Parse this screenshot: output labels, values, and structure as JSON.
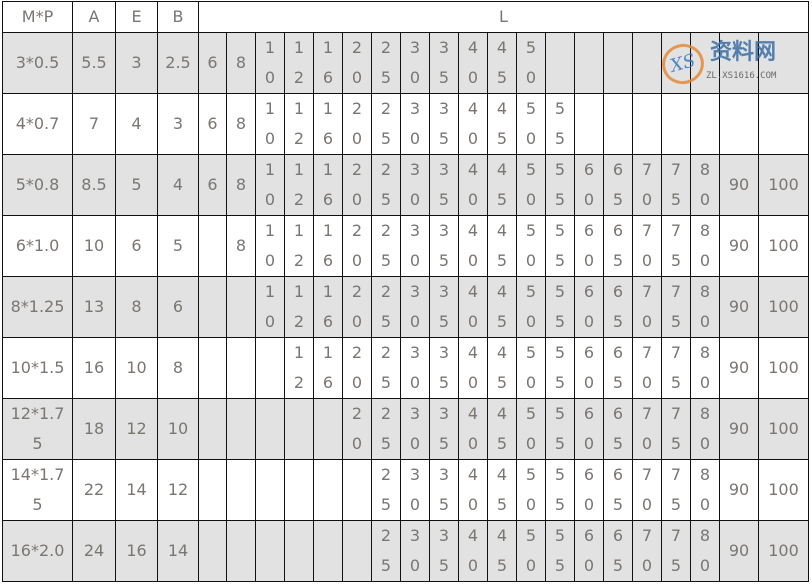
{
  "header": {
    "mp": "M*P",
    "a": "A",
    "e": "E",
    "b": "B",
    "l": "L"
  },
  "rows": [
    {
      "mp": "3*0.5",
      "a": "5.5",
      "e": "3",
      "b": "2.5",
      "gray": true,
      "l": [
        "6",
        "8",
        "10",
        "12",
        "16",
        "20",
        "25",
        "30",
        "35",
        "40",
        "45",
        "50",
        "",
        "",
        "",
        "",
        "",
        "",
        "",
        ""
      ]
    },
    {
      "mp": "4*0.7",
      "a": "7",
      "e": "4",
      "b": "3",
      "gray": false,
      "l": [
        "6",
        "8",
        "10",
        "12",
        "16",
        "20",
        "25",
        "30",
        "35",
        "40",
        "45",
        "50",
        "55",
        "",
        "",
        "",
        "",
        "",
        "",
        ""
      ]
    },
    {
      "mp": "5*0.8",
      "a": "8.5",
      "e": "5",
      "b": "4",
      "gray": true,
      "l": [
        "6",
        "8",
        "10",
        "12",
        "16",
        "20",
        "25",
        "30",
        "35",
        "40",
        "45",
        "50",
        "55",
        "60",
        "65",
        "70",
        "75",
        "80",
        "90",
        "100"
      ]
    },
    {
      "mp": "6*1.0",
      "a": "10",
      "e": "6",
      "b": "5",
      "gray": false,
      "l": [
        "",
        "8",
        "10",
        "12",
        "16",
        "20",
        "25",
        "30",
        "35",
        "40",
        "45",
        "50",
        "55",
        "60",
        "65",
        "70",
        "75",
        "80",
        "90",
        "100"
      ]
    },
    {
      "mp": "8*1.25",
      "a": "13",
      "e": "8",
      "b": "6",
      "gray": true,
      "l": [
        "",
        "",
        "10",
        "12",
        "16",
        "20",
        "25",
        "30",
        "35",
        "40",
        "45",
        "50",
        "55",
        "60",
        "65",
        "70",
        "75",
        "80",
        "90",
        "100"
      ]
    },
    {
      "mp": "10*1.5",
      "a": "16",
      "e": "10",
      "b": "8",
      "gray": false,
      "l": [
        "",
        "",
        "",
        "12",
        "16",
        "20",
        "25",
        "30",
        "35",
        "40",
        "45",
        "50",
        "55",
        "60",
        "65",
        "70",
        "75",
        "80",
        "90",
        "100"
      ]
    },
    {
      "mp": "12*1.75",
      "a": "18",
      "e": "12",
      "b": "10",
      "gray": true,
      "l": [
        "",
        "",
        "",
        "",
        "",
        "20",
        "25",
        "30",
        "35",
        "40",
        "45",
        "50",
        "55",
        "60",
        "65",
        "70",
        "75",
        "80",
        "90",
        "100"
      ]
    },
    {
      "mp": "14*1.75",
      "a": "22",
      "e": "14",
      "b": "12",
      "gray": false,
      "l": [
        "",
        "",
        "",
        "",
        "",
        "",
        "25",
        "30",
        "35",
        "40",
        "45",
        "50",
        "55",
        "60",
        "65",
        "70",
        "75",
        "80",
        "90",
        "100"
      ]
    },
    {
      "mp": "16*2.0",
      "a": "24",
      "e": "16",
      "b": "14",
      "gray": true,
      "l": [
        "",
        "",
        "",
        "",
        "",
        "",
        "25",
        "30",
        "35",
        "40",
        "45",
        "50",
        "55",
        "60",
        "65",
        "70",
        "75",
        "80",
        "90",
        "100"
      ]
    }
  ],
  "watermark": {
    "logo": "XS",
    "text": "资料网",
    "url": "ZL.XS1616.COM"
  }
}
